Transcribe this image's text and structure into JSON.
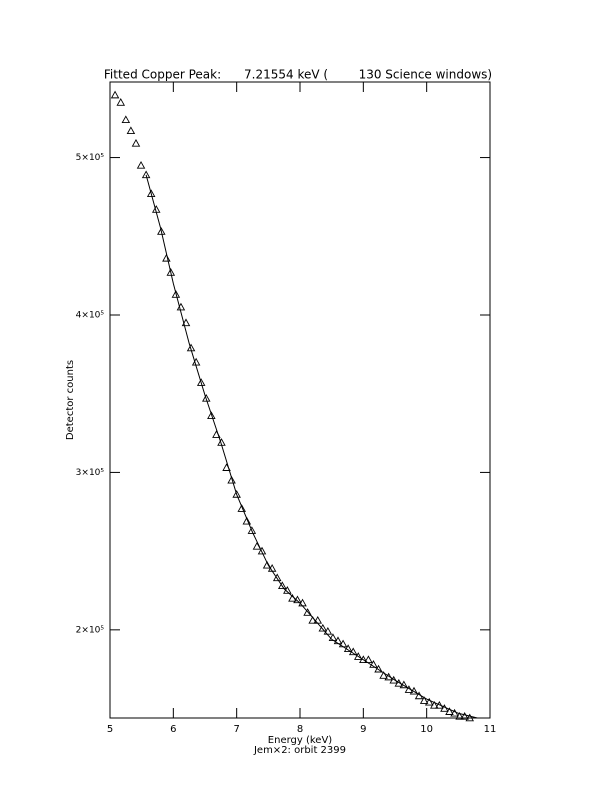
{
  "chart_data": {
    "type": "scatter",
    "title": "Fitted Copper Peak:      7.21554 keV (        130 Science windows)",
    "x_label": "Energy (keV)",
    "subtitle": "Jem×2: orbit 2399",
    "y_label": "Detector counts",
    "xlim": [
      5,
      11
    ],
    "xticks": [
      5,
      6,
      7,
      8,
      9,
      10,
      11
    ],
    "ylim": [
      144000,
      548000
    ],
    "yticks": [
      {
        "value": 200000,
        "label": "2×10⁵"
      },
      {
        "value": 300000,
        "label": "3×10⁵"
      },
      {
        "value": 400000,
        "label": "4×10⁵"
      },
      {
        "value": 500000,
        "label": "5×10⁵"
      }
    ],
    "series": [
      {
        "style": "markers",
        "marker": "triangle",
        "color": "#000000",
        "x": [
          5.08,
          5.17,
          5.25,
          5.33,
          5.41,
          5.49,
          5.57,
          5.65,
          5.73,
          5.81,
          5.89,
          5.96,
          6.04,
          6.12,
          6.2,
          6.28,
          6.36,
          6.44,
          6.52,
          6.6,
          6.68,
          6.76,
          6.84,
          6.92,
          7.0,
          7.08,
          7.16,
          7.24,
          7.32,
          7.4,
          7.48,
          7.56,
          7.64,
          7.72,
          7.8,
          7.88,
          7.96,
          8.04,
          8.12,
          8.2,
          8.28,
          8.36,
          8.44,
          8.52,
          8.6,
          8.68,
          8.76,
          8.84,
          8.92,
          9.0,
          9.08,
          9.16,
          9.24,
          9.32,
          9.4,
          9.48,
          9.56,
          9.64,
          9.72,
          9.8,
          9.88,
          9.96,
          10.04,
          10.12,
          10.2,
          10.28,
          10.36,
          10.44,
          10.52,
          10.6,
          10.68
        ],
        "values": [
          539700,
          535000,
          524000,
          517000,
          509000,
          495000,
          489000,
          477000,
          467000,
          453000,
          436000,
          427000,
          413000,
          405000,
          395000,
          379000,
          370000,
          357000,
          347000,
          336000,
          324000,
          319000,
          303000,
          295000,
          286000,
          277000,
          269000,
          263000,
          253000,
          250000,
          241000,
          239000,
          233000,
          228000,
          225000,
          220000,
          219000,
          217000,
          211000,
          206000,
          206000,
          201000,
          199000,
          195000,
          193000,
          191000,
          188000,
          186000,
          183000,
          181000,
          181000,
          178000,
          175000,
          171000,
          170000,
          168000,
          166000,
          165000,
          162000,
          161000,
          158000,
          155000,
          154000,
          152000,
          152000,
          150000,
          148000,
          147000,
          145000,
          145000,
          144000
        ]
      },
      {
        "style": "line",
        "color": "#000000",
        "x": [
          5.57,
          5.8,
          6.0,
          6.25,
          6.5,
          6.75,
          7.0,
          7.25,
          7.5,
          7.75,
          8.0,
          8.5,
          9.0,
          9.5,
          10.0,
          10.5,
          10.8
        ],
        "values": [
          489000,
          455000,
          420000,
          382000,
          349000,
          319000,
          286000,
          262000,
          241000,
          226000,
          217000,
          194000,
          181000,
          168000,
          156000,
          147000,
          144000
        ]
      }
    ]
  }
}
